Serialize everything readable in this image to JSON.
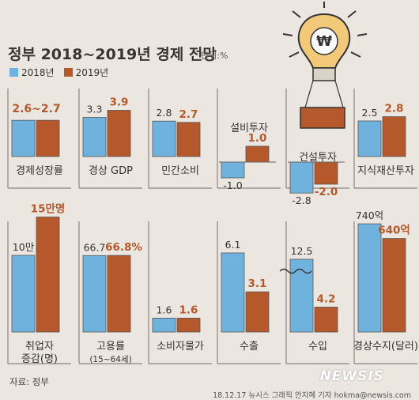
{
  "title": "정부 2018~2019년 경제 전망",
  "unit": "단위:%",
  "legend": [
    "2018년",
    "2019년"
  ],
  "colors": {
    "y2018": "#6fb2dd",
    "y2019": "#b5592c",
    "value2019": "#b5592c",
    "value2018": "#333333",
    "background": "#ebe6df"
  },
  "source": "자료: 정부",
  "credit": "18.12.17 뉴시스 그래픽 안지혜 기자 hokma@newsis.com",
  "logo_text": "NEWSIS",
  "illustration": "lightbulb-hot-air-balloon-icon",
  "chart_data": {
    "type": "bar",
    "series": [
      {
        "name": "2018년"
      },
      {
        "name": "2019년"
      }
    ],
    "panels": [
      {
        "category": "경제성장률",
        "label_2018": "2.6~2.7",
        "label_2019": "2.6~2.7",
        "v2018": 2.65,
        "v2019": 2.65
      },
      {
        "category": "경상 GDP",
        "label_2018": "3.3",
        "label_2019": "3.9",
        "v2018": 3.3,
        "v2019": 3.9
      },
      {
        "category": "민간소비",
        "label_2018": "2.8",
        "label_2019": "2.7",
        "v2018": 2.8,
        "v2019": 2.7
      },
      {
        "category": "설비투자",
        "label_2018": "-1.0",
        "label_2019": "1.0",
        "v2018": -1.0,
        "v2019": 1.0
      },
      {
        "category": "건설투자",
        "label_2018": "-2.8",
        "label_2019": "-2.0",
        "v2018": -2.8,
        "v2019": -2.0
      },
      {
        "category": "지식재산투자",
        "label_2018": "2.5",
        "label_2019": "2.8",
        "v2018": 2.5,
        "v2019": 2.8
      },
      {
        "category": "취업자\n증감(명)",
        "label_2018": "10만",
        "label_2019": "15만명",
        "v2018": 100000,
        "v2019": 150000
      },
      {
        "category": "고용률\n(15~64세)",
        "label_2018": "66.7",
        "label_2019": "66.8%",
        "v2018": 66.7,
        "v2019": 66.8
      },
      {
        "category": "소비자물가",
        "label_2018": "1.6",
        "label_2019": "1.6",
        "v2018": 1.6,
        "v2019": 1.6
      },
      {
        "category": "수출",
        "label_2018": "6.1",
        "label_2019": "3.1",
        "v2018": 6.1,
        "v2019": 3.1
      },
      {
        "category": "수입",
        "label_2018": "12.5",
        "label_2019": "4.2",
        "v2018": 12.5,
        "v2019": 4.2
      },
      {
        "category": "경상수지(달러)",
        "label_2018": "740억",
        "label_2019": "640억",
        "v2018": 740,
        "v2019": 640
      }
    ]
  }
}
